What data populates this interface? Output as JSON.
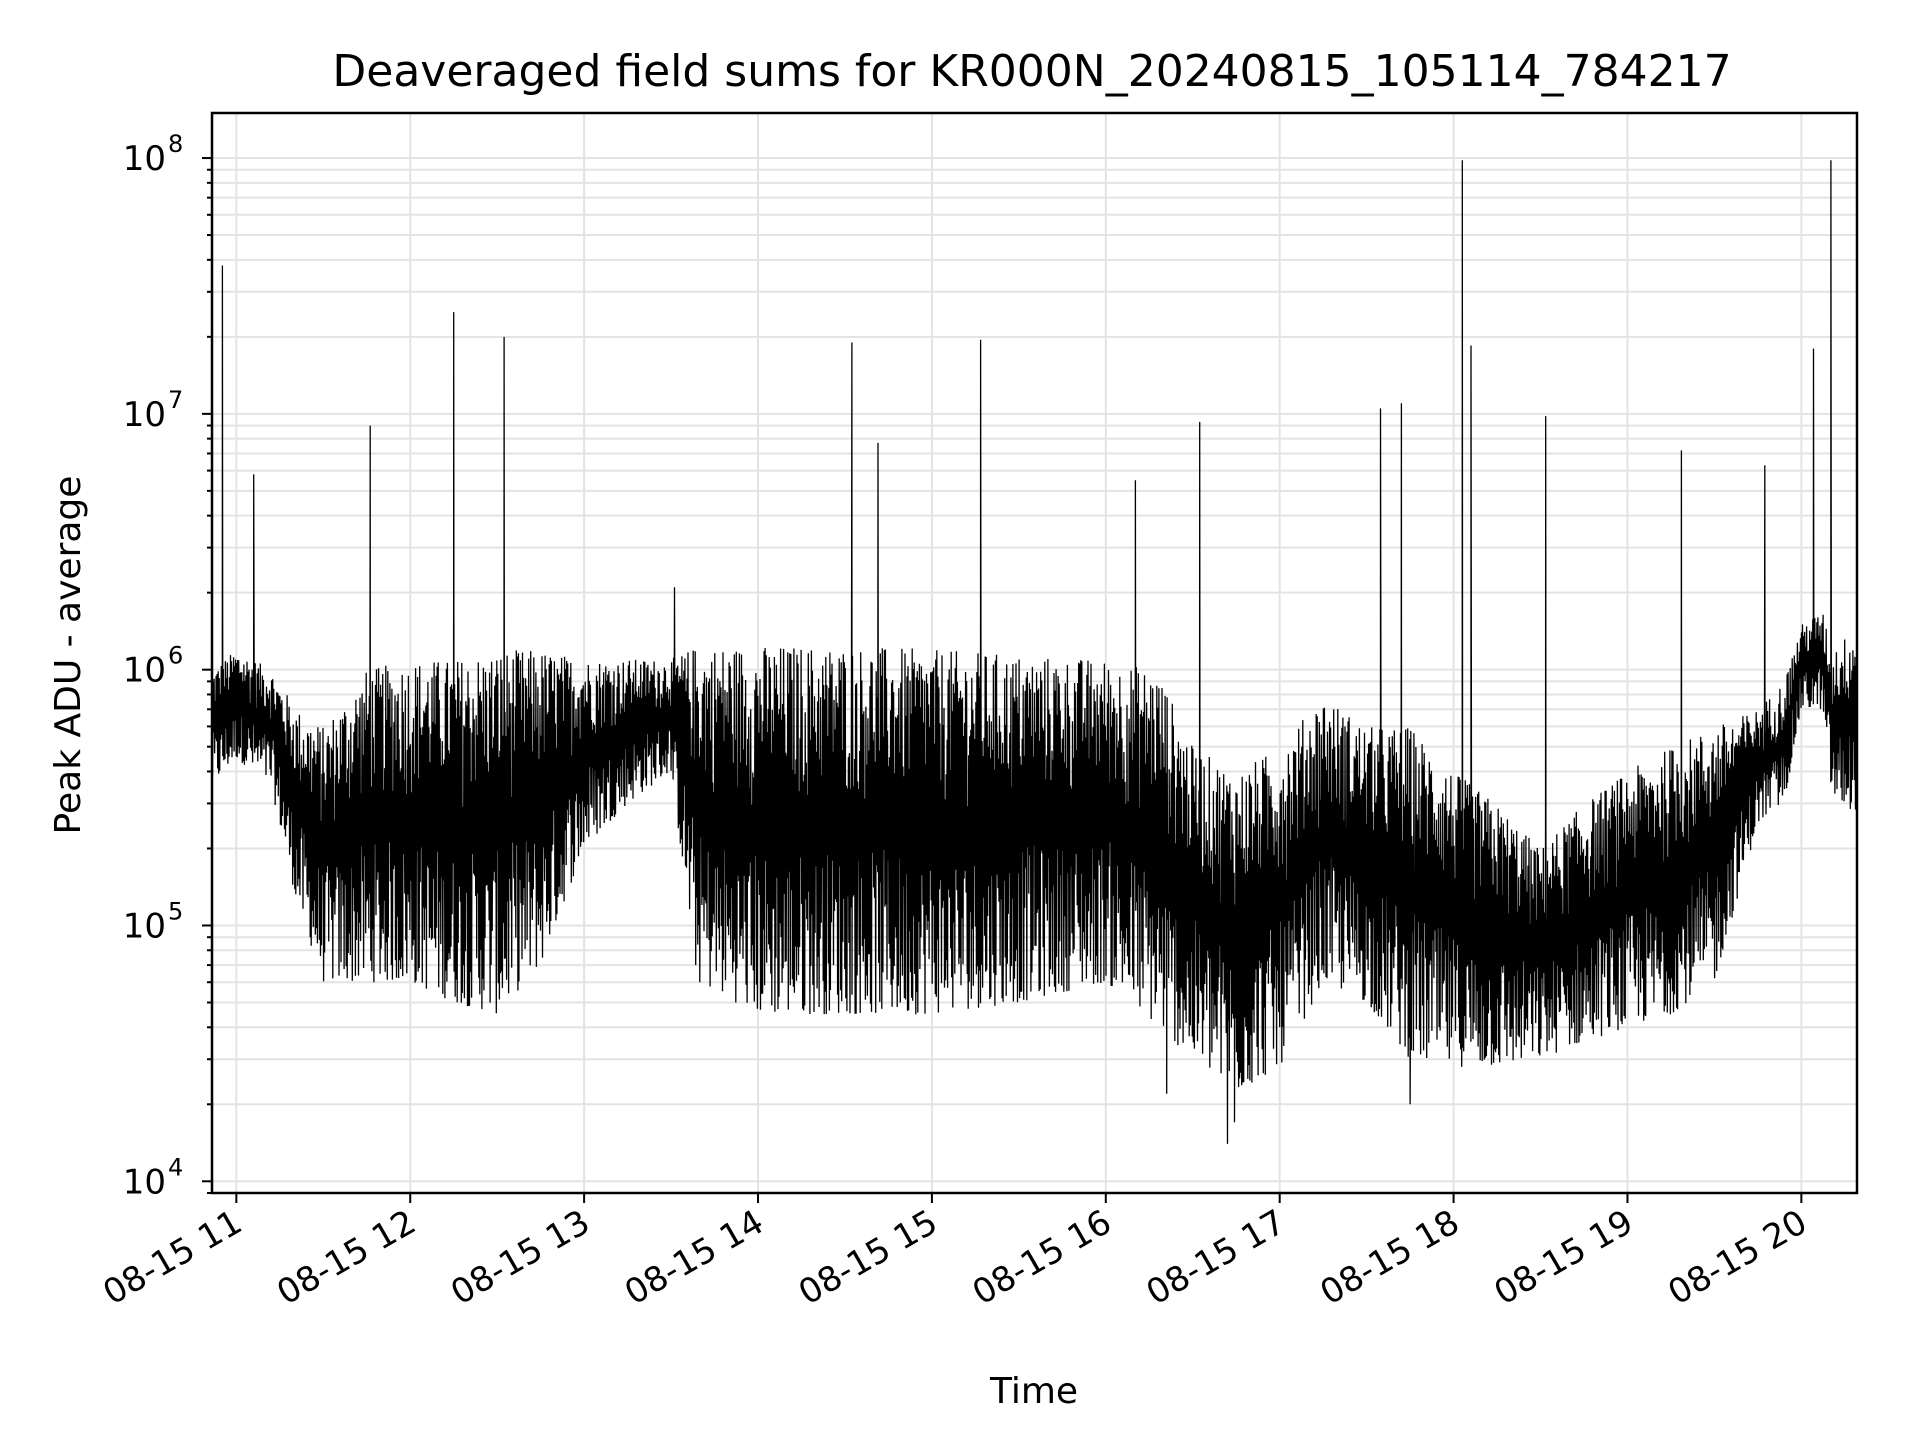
{
  "chart_data": {
    "type": "line",
    "title": "Deaveraged field sums for KR000N_20240815_105114_784217",
    "xlabel": "Time",
    "ylabel": "Peak ADU - average",
    "yscale": "log",
    "xlim_hours": [
      10.86,
      20.32
    ],
    "ylim": [
      9000,
      150000000
    ],
    "grid": true,
    "line_color": "#000000",
    "x_ticks": [
      {
        "value": 11,
        "label": "08-15 11"
      },
      {
        "value": 12,
        "label": "08-15 12"
      },
      {
        "value": 13,
        "label": "08-15 13"
      },
      {
        "value": 14,
        "label": "08-15 14"
      },
      {
        "value": 15,
        "label": "08-15 15"
      },
      {
        "value": 16,
        "label": "08-15 16"
      },
      {
        "value": 17,
        "label": "08-15 17"
      },
      {
        "value": 18,
        "label": "08-15 18"
      },
      {
        "value": 19,
        "label": "08-15 19"
      },
      {
        "value": 20,
        "label": "08-15 20"
      }
    ],
    "y_ticks": [
      {
        "value": 10000,
        "base": "10",
        "exp": "4"
      },
      {
        "value": 100000,
        "base": "10",
        "exp": "5"
      },
      {
        "value": 1000000,
        "base": "10",
        "exp": "6"
      },
      {
        "value": 10000000,
        "base": "10",
        "exp": "7"
      },
      {
        "value": 100000000,
        "base": "10",
        "exp": "8"
      }
    ],
    "envelope": {
      "note": "Dense time series summarised as min/max envelope per segment (time in hours)",
      "segments": [
        {
          "t": 10.86,
          "lo": 350000,
          "hi": 1000000
        },
        {
          "t": 11.0,
          "lo": 450000,
          "hi": 1200000
        },
        {
          "t": 11.2,
          "lo": 350000,
          "hi": 1000000
        },
        {
          "t": 11.35,
          "lo": 120000,
          "hi": 700000
        },
        {
          "t": 11.5,
          "lo": 60000,
          "hi": 600000
        },
        {
          "t": 11.75,
          "lo": 60000,
          "hi": 1000000
        },
        {
          "t": 12.0,
          "lo": 60000,
          "hi": 1100000
        },
        {
          "t": 12.25,
          "lo": 50000,
          "hi": 1100000
        },
        {
          "t": 12.5,
          "lo": 45000,
          "hi": 1200000
        },
        {
          "t": 12.75,
          "lo": 70000,
          "hi": 1200000
        },
        {
          "t": 13.0,
          "lo": 200000,
          "hi": 1100000
        },
        {
          "t": 13.25,
          "lo": 300000,
          "hi": 1100000
        },
        {
          "t": 13.5,
          "lo": 400000,
          "hi": 1100000
        },
        {
          "t": 13.65,
          "lo": 60000,
          "hi": 1250000
        },
        {
          "t": 14.0,
          "lo": 45000,
          "hi": 1250000
        },
        {
          "t": 14.5,
          "lo": 45000,
          "hi": 1250000
        },
        {
          "t": 15.0,
          "lo": 45000,
          "hi": 1200000
        },
        {
          "t": 15.5,
          "lo": 50000,
          "hi": 1150000
        },
        {
          "t": 16.0,
          "lo": 60000,
          "hi": 1100000
        },
        {
          "t": 16.3,
          "lo": 40000,
          "hi": 1000000
        },
        {
          "t": 16.5,
          "lo": 30000,
          "hi": 500000
        },
        {
          "t": 16.75,
          "lo": 22000,
          "hi": 400000
        },
        {
          "t": 17.0,
          "lo": 28000,
          "hi": 500000
        },
        {
          "t": 17.25,
          "lo": 60000,
          "hi": 800000
        },
        {
          "t": 17.5,
          "lo": 50000,
          "hi": 600000
        },
        {
          "t": 17.75,
          "lo": 30000,
          "hi": 600000
        },
        {
          "t": 18.0,
          "lo": 28000,
          "hi": 400000
        },
        {
          "t": 18.25,
          "lo": 28000,
          "hi": 300000
        },
        {
          "t": 18.5,
          "lo": 30000,
          "hi": 200000
        },
        {
          "t": 18.75,
          "lo": 35000,
          "hi": 300000
        },
        {
          "t": 19.0,
          "lo": 40000,
          "hi": 400000
        },
        {
          "t": 19.25,
          "lo": 45000,
          "hi": 500000
        },
        {
          "t": 19.5,
          "lo": 60000,
          "hi": 600000
        },
        {
          "t": 19.75,
          "lo": 250000,
          "hi": 700000
        },
        {
          "t": 19.9,
          "lo": 300000,
          "hi": 900000
        },
        {
          "t": 20.0,
          "lo": 700000,
          "hi": 1500000
        },
        {
          "t": 20.12,
          "lo": 700000,
          "hi": 1700000
        },
        {
          "t": 20.18,
          "lo": 300000,
          "hi": 1200000
        },
        {
          "t": 20.32,
          "lo": 280000,
          "hi": 1500000
        }
      ]
    },
    "spikes": [
      {
        "t": 10.92,
        "value": 38000000
      },
      {
        "t": 11.1,
        "value": 5800000
      },
      {
        "t": 11.77,
        "value": 9000000
      },
      {
        "t": 12.25,
        "value": 25000000
      },
      {
        "t": 12.54,
        "value": 20000000
      },
      {
        "t": 13.52,
        "value": 2100000
      },
      {
        "t": 14.54,
        "value": 19000000
      },
      {
        "t": 14.69,
        "value": 7700000
      },
      {
        "t": 15.28,
        "value": 19500000
      },
      {
        "t": 16.17,
        "value": 5500000
      },
      {
        "t": 16.54,
        "value": 9300000
      },
      {
        "t": 17.58,
        "value": 10500000
      },
      {
        "t": 17.7,
        "value": 11000000
      },
      {
        "t": 18.05,
        "value": 98000000
      },
      {
        "t": 18.1,
        "value": 18500000
      },
      {
        "t": 18.53,
        "value": 9800000
      },
      {
        "t": 19.31,
        "value": 7200000
      },
      {
        "t": 19.79,
        "value": 6300000
      },
      {
        "t": 20.07,
        "value": 18000000
      },
      {
        "t": 20.17,
        "value": 98000000
      }
    ],
    "dips": [
      {
        "t": 16.7,
        "value": 14000
      },
      {
        "t": 16.74,
        "value": 17000
      },
      {
        "t": 17.75,
        "value": 20000
      },
      {
        "t": 16.35,
        "value": 22000
      }
    ]
  }
}
